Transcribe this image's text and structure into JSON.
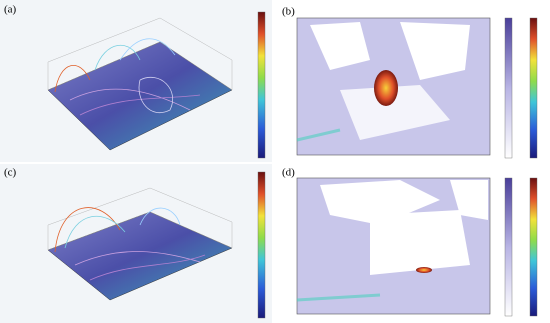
{
  "panels": [
    {
      "label": "(a)"
    },
    {
      "label": "(b)"
    },
    {
      "label": "(c)"
    },
    {
      "label": "(d)"
    }
  ]
}
